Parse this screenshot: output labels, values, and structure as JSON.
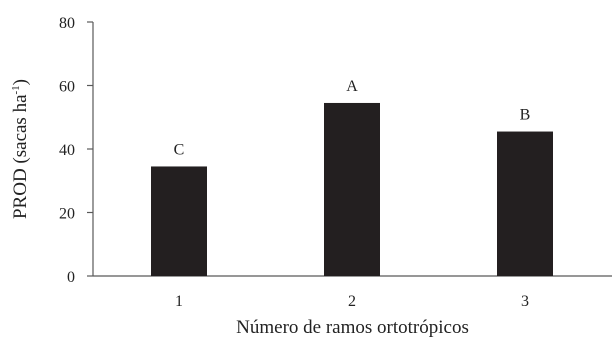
{
  "chart_data": {
    "type": "bar",
    "categories": [
      "1",
      "2",
      "3"
    ],
    "values": [
      34.5,
      54.5,
      45.5
    ],
    "data_labels": [
      "C",
      "A",
      "B"
    ],
    "title": "",
    "xlabel": "Número de ramos ortotrópicos",
    "ylabel": {
      "text": "PROD (sacas ha",
      "sup": "-1",
      "close": ")"
    },
    "ylim": [
      0,
      80
    ],
    "yticks": [
      0,
      20,
      40,
      60,
      80
    ],
    "grid": false,
    "legend": "none",
    "bar_color": "#231f20",
    "axis_color": "#595959"
  }
}
